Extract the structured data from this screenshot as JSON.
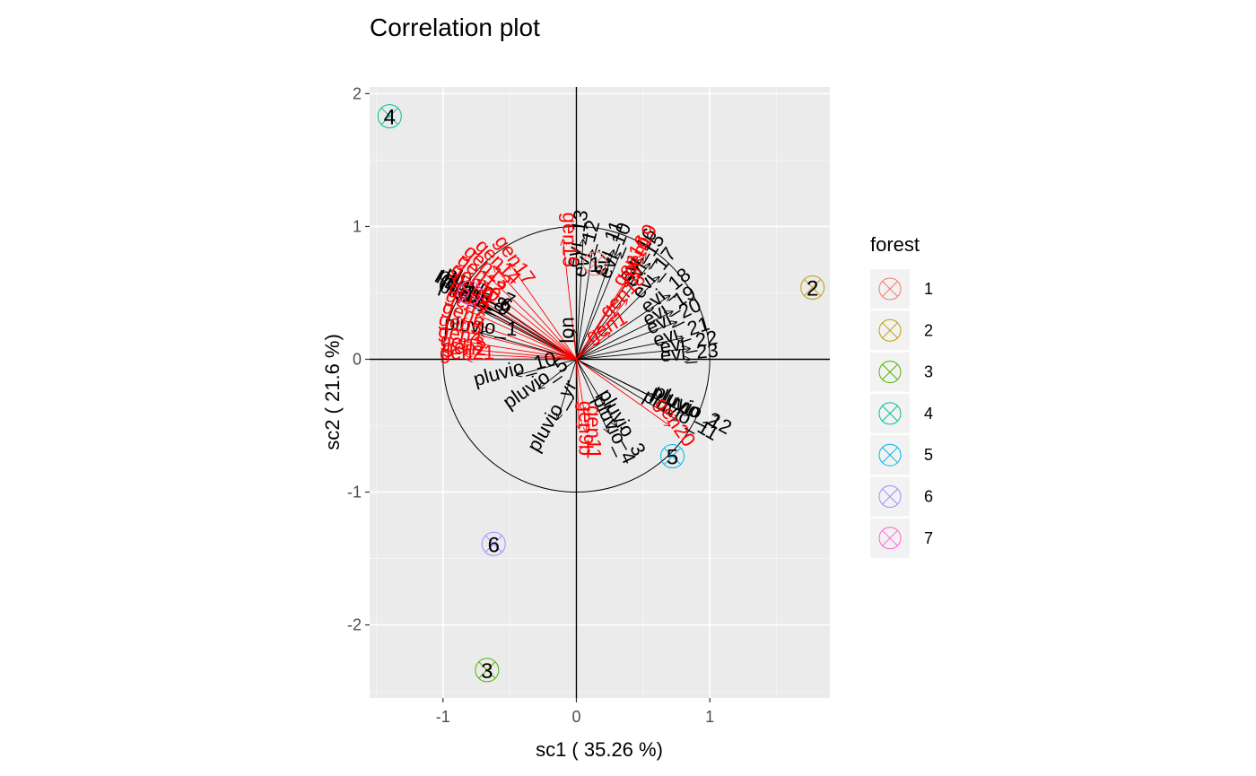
{
  "chart_data": {
    "type": "scatter",
    "title": "Correlation plot",
    "xlabel": "sc1 ( 35.26 %)",
    "ylabel": "sc2 ( 21.6 %)",
    "xlim": [
      -1.55,
      1.9
    ],
    "ylim": [
      -2.55,
      2.05
    ],
    "x_ticks": [
      -1,
      0,
      1
    ],
    "x_tick_labels": [
      "-1",
      "0",
      "1"
    ],
    "y_ticks": [
      -2,
      -1,
      0,
      1,
      2
    ],
    "y_tick_labels": [
      "-2",
      "-1",
      "0",
      "1",
      "2"
    ],
    "grid": true,
    "background": "#ebebeb",
    "circle_radius": 1,
    "legend": {
      "title": "forest",
      "placement": "right",
      "entries": [
        {
          "label": "1",
          "color": "#F8766D"
        },
        {
          "label": "2",
          "color": "#C49A00"
        },
        {
          "label": "3",
          "color": "#53B400"
        },
        {
          "label": "4",
          "color": "#00C094"
        },
        {
          "label": "5",
          "color": "#00B6EB"
        },
        {
          "label": "6",
          "color": "#A58AFF"
        },
        {
          "label": "7",
          "color": "#FB61D7"
        }
      ]
    },
    "groups": [
      {
        "label": "1",
        "x": 0.14,
        "y": 0.72,
        "color": "#F8766D"
      },
      {
        "label": "2",
        "x": 1.77,
        "y": 0.54,
        "color": "#C49A00"
      },
      {
        "label": "3",
        "x": -0.67,
        "y": -2.34,
        "color": "#53B400"
      },
      {
        "label": "4",
        "x": -1.4,
        "y": 1.83,
        "color": "#00C094"
      },
      {
        "label": "5",
        "x": 0.72,
        "y": -0.73,
        "color": "#00B6EB"
      },
      {
        "label": "6",
        "x": -0.62,
        "y": -1.39,
        "color": "#A58AFF"
      },
      {
        "label": "7",
        "x": -0.8,
        "y": 0.5,
        "color": "#FB61D7"
      }
    ],
    "variables": [
      {
        "label": "lon",
        "x": -0.02,
        "y": 0.22,
        "color": "#000000",
        "angle": -90
      },
      {
        "label": "evi_13",
        "x": 0.05,
        "y": 0.9,
        "color": "#000000",
        "angle": -80
      },
      {
        "label": "evi_12",
        "x": 0.12,
        "y": 0.82,
        "color": "#000000",
        "angle": -75
      },
      {
        "label": "evi_11",
        "x": 0.28,
        "y": 0.82,
        "color": "#000000",
        "angle": -70
      },
      {
        "label": "evi_10",
        "x": 0.33,
        "y": 0.8,
        "color": "#000000",
        "angle": -68
      },
      {
        "label": "evi_16",
        "x": 0.5,
        "y": 0.76,
        "color": "#000000",
        "angle": -60
      },
      {
        "label": "evi_15",
        "x": 0.55,
        "y": 0.72,
        "color": "#000000",
        "angle": -58
      },
      {
        "label": "evi_17",
        "x": 0.62,
        "y": 0.62,
        "color": "#000000",
        "angle": -52
      },
      {
        "label": "evi_18",
        "x": 0.7,
        "y": 0.48,
        "color": "#000000",
        "angle": -40
      },
      {
        "label": "evi_19",
        "x": 0.72,
        "y": 0.36,
        "color": "#000000",
        "angle": -32
      },
      {
        "label": "evi_20",
        "x": 0.75,
        "y": 0.28,
        "color": "#000000",
        "angle": -26
      },
      {
        "label": "evi_21",
        "x": 0.8,
        "y": 0.16,
        "color": "#000000",
        "angle": -18
      },
      {
        "label": "evi_22",
        "x": 0.85,
        "y": 0.08,
        "color": "#000000",
        "angle": -10
      },
      {
        "label": "evi_23",
        "x": 0.85,
        "y": 0.0,
        "color": "#000000",
        "angle": -5
      },
      {
        "label": "pluvio_12",
        "x": 0.85,
        "y": -0.42,
        "color": "#000000",
        "angle": 28
      },
      {
        "label": "pluvio_2",
        "x": 0.8,
        "y": -0.4,
        "color": "#000000",
        "angle": 26
      },
      {
        "label": "pluvio_11",
        "x": 0.76,
        "y": -0.46,
        "color": "#000000",
        "angle": 30
      },
      {
        "label": "pluvio_3",
        "x": 0.3,
        "y": -0.5,
        "color": "#000000",
        "angle": 60
      },
      {
        "label": "pluvio_4",
        "x": 0.24,
        "y": -0.55,
        "color": "#000000",
        "angle": 64
      },
      {
        "label": "pluvio_yr",
        "x": -0.14,
        "y": -0.45,
        "color": "#000000",
        "angle": -60
      },
      {
        "label": "pluvio_5",
        "x": -0.28,
        "y": -0.22,
        "color": "#000000",
        "angle": -35
      },
      {
        "label": "pluvio_10",
        "x": -0.45,
        "y": -0.12,
        "color": "#000000",
        "angle": -15
      },
      {
        "label": "pluvio_1",
        "x": -0.72,
        "y": 0.2,
        "color": "#000000",
        "angle": 5
      },
      {
        "label": "pluvio_6",
        "x": -0.76,
        "y": 0.45,
        "color": "#000000",
        "angle": 22
      },
      {
        "label": "pluvio_7",
        "x": -0.74,
        "y": 0.5,
        "color": "#000000",
        "angle": 25
      },
      {
        "label": "pluvio_8",
        "x": -0.8,
        "y": 0.48,
        "color": "#000000",
        "angle": 28
      },
      {
        "label": "pluvio_9",
        "x": -0.78,
        "y": 0.42,
        "color": "#000000",
        "angle": 20
      },
      {
        "label": "I(lat^2)",
        "x": -0.88,
        "y": 0.48,
        "color": "#000000",
        "angle": 30
      },
      {
        "label": "lat",
        "x": -0.9,
        "y": 0.46,
        "color": "#000000",
        "angle": 28
      },
      {
        "label": "gen17",
        "x": -0.5,
        "y": 0.72,
        "color": "#FF0000",
        "angle": 55
      },
      {
        "label": "gen14",
        "x": -0.62,
        "y": 0.7,
        "color": "#FF0000",
        "angle": 45
      },
      {
        "label": "gen13",
        "x": -0.7,
        "y": 0.66,
        "color": "#FF0000",
        "angle": 42
      },
      {
        "label": "gen12",
        "x": -0.74,
        "y": 0.6,
        "color": "#FF0000",
        "angle": 38
      },
      {
        "label": "gen10",
        "x": -0.78,
        "y": 0.54,
        "color": "#FF0000",
        "angle": 34
      },
      {
        "label": "gen9",
        "x": -0.8,
        "y": 0.5,
        "color": "#FF0000",
        "angle": 32
      },
      {
        "label": "gen8",
        "x": -0.82,
        "y": 0.44,
        "color": "#FF0000",
        "angle": 28
      },
      {
        "label": "gen7",
        "x": -0.84,
        "y": 0.38,
        "color": "#FF0000",
        "angle": 24
      },
      {
        "label": "gen6",
        "x": -0.86,
        "y": 0.3,
        "color": "#FF0000",
        "angle": 20
      },
      {
        "label": "gen5",
        "x": -0.88,
        "y": 0.22,
        "color": "#FF0000",
        "angle": 14
      },
      {
        "label": "gen4",
        "x": -0.88,
        "y": 0.14,
        "color": "#FF0000",
        "angle": 10
      },
      {
        "label": "gen3",
        "x": -0.86,
        "y": 0.08,
        "color": "#FF0000",
        "angle": 6
      },
      {
        "label": "gen2",
        "x": -0.84,
        "y": 0.04,
        "color": "#FF0000",
        "angle": 3
      },
      {
        "label": "gen21",
        "x": -0.82,
        "y": 0.0,
        "color": "#FF0000",
        "angle": 0
      },
      {
        "label": "gen15",
        "x": -0.1,
        "y": 0.9,
        "color": "#FF0000",
        "angle": 90
      },
      {
        "label": "gen19",
        "x": 0.52,
        "y": 0.8,
        "color": "#FF0000",
        "angle": -65
      },
      {
        "label": "gen16",
        "x": 0.45,
        "y": 0.72,
        "color": "#FF0000",
        "angle": -60
      },
      {
        "label": "gen18",
        "x": 0.38,
        "y": 0.45,
        "color": "#FF0000",
        "angle": -45
      },
      {
        "label": "gen1",
        "x": 0.25,
        "y": 0.2,
        "color": "#FF0000",
        "angle": -30
      },
      {
        "label": "gen11",
        "x": 0.08,
        "y": -0.55,
        "color": "#FF0000",
        "angle": 90
      },
      {
        "label": "gen9b",
        "x": 0.02,
        "y": -0.52,
        "color": "#FF0000",
        "angle": 90
      },
      {
        "label": "gen20",
        "x": 0.7,
        "y": -0.5,
        "color": "#FF0000",
        "angle": 55
      }
    ]
  }
}
